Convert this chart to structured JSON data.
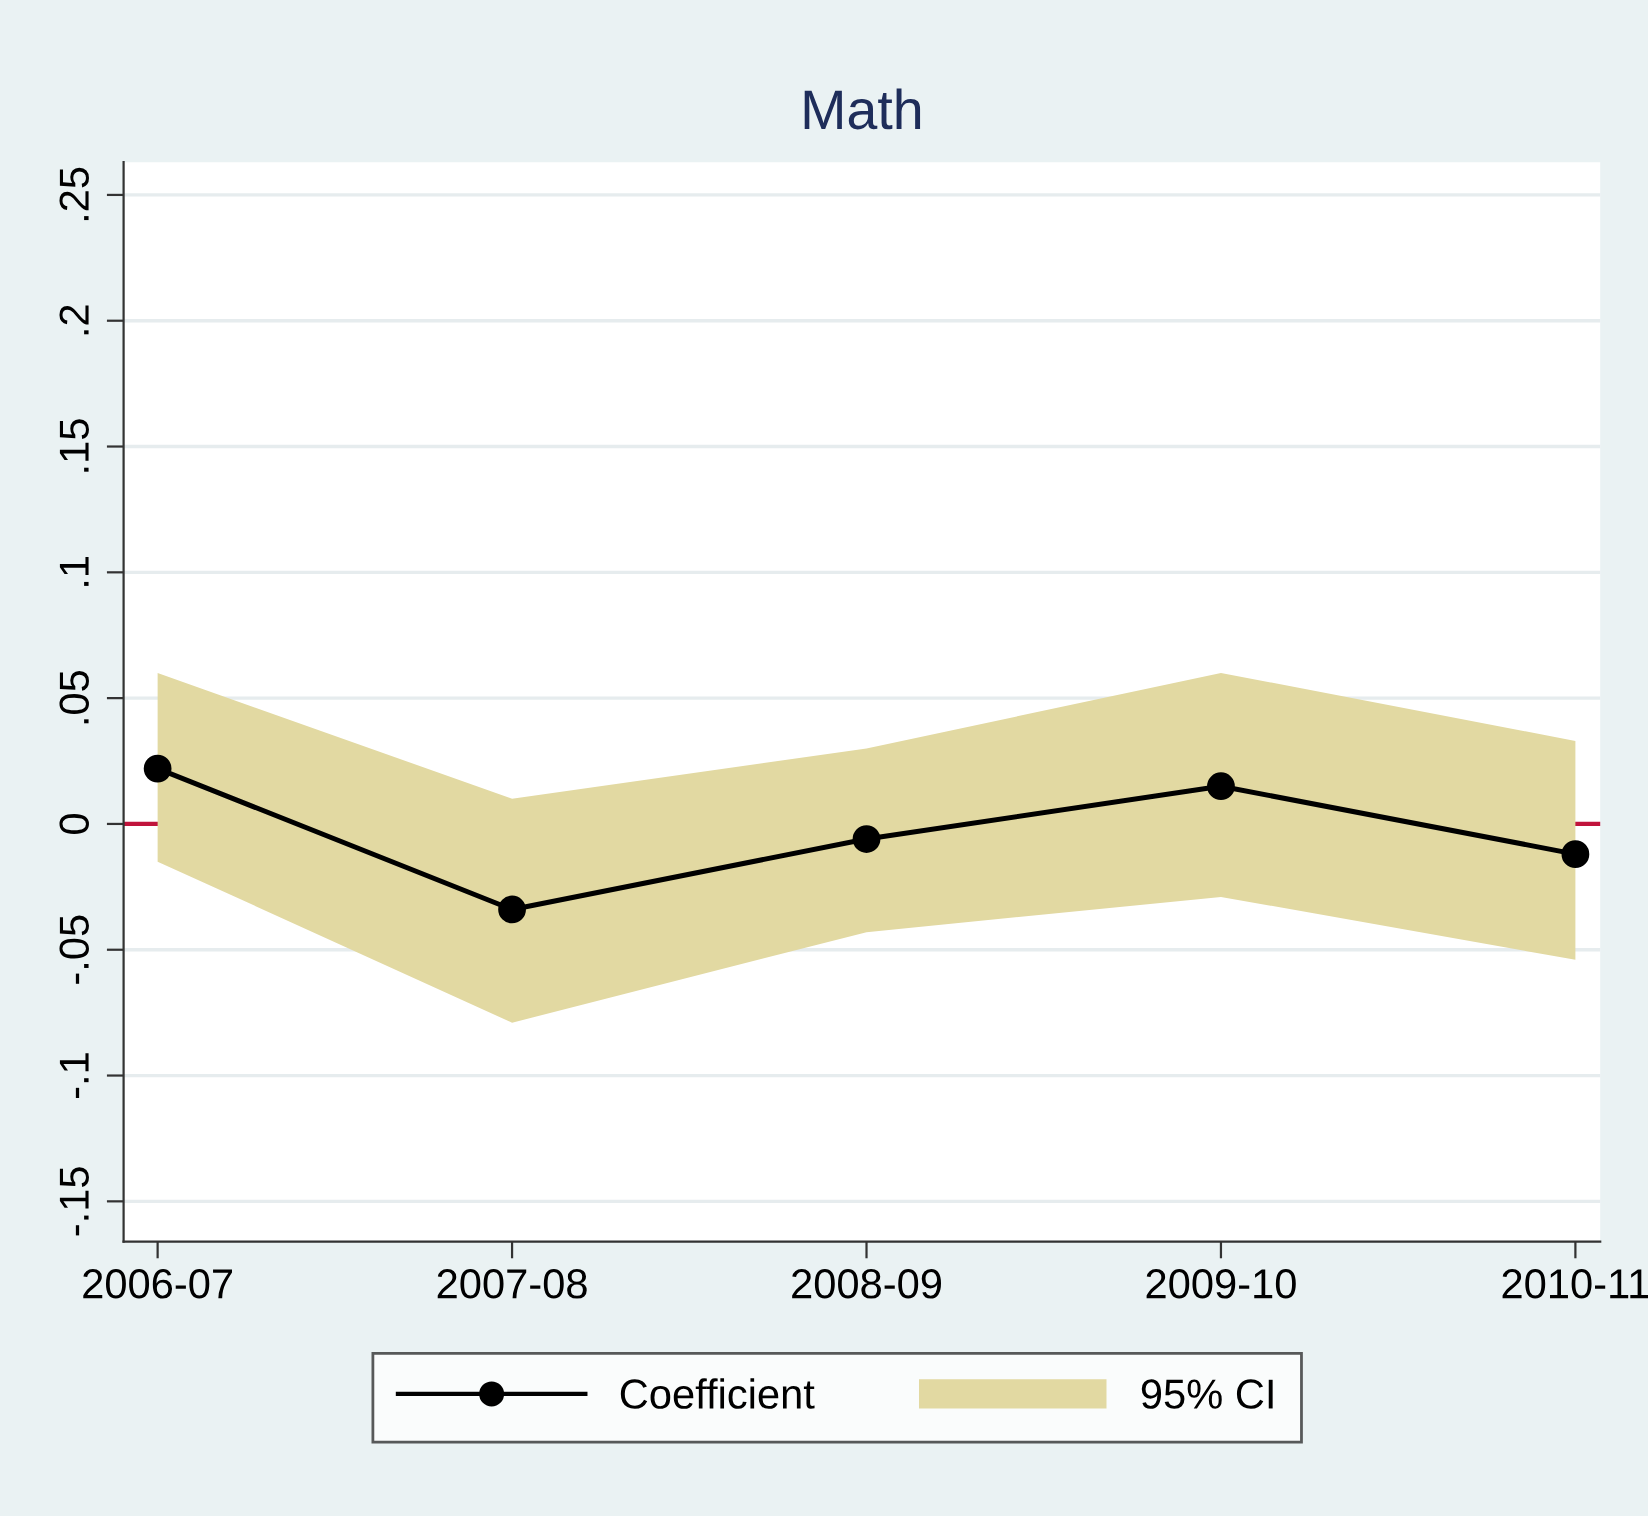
{
  "chart_data": {
    "type": "line",
    "title": "Math",
    "categories": [
      "2006-07",
      "2007-08",
      "2008-09",
      "2009-10",
      "2010-11"
    ],
    "series": [
      {
        "name": "Coefficient",
        "color": "#000000",
        "values": [
          0.022,
          -0.034,
          -0.006,
          0.015,
          -0.012
        ],
        "lower": [
          -0.015,
          -0.079,
          -0.043,
          -0.029,
          -0.054
        ],
        "upper": [
          0.06,
          0.01,
          0.03,
          0.06,
          0.033
        ],
        "marker": "circle",
        "line_style": "solid"
      }
    ],
    "annotations": [
      "95% CI"
    ],
    "ylim": [
      -0.166,
      0.263
    ],
    "yticks": [
      {
        "value": -0.15,
        "label": "-.15"
      },
      {
        "value": -0.1,
        "label": "-.1"
      },
      {
        "value": -0.05,
        "label": "-.05"
      },
      0,
      {
        "value": 0.05,
        "label": ".05"
      },
      {
        "value": 0.1,
        "label": ".1"
      },
      {
        "value": 0.15,
        "label": ".15"
      },
      {
        "value": 0.2,
        "label": ".2"
      },
      {
        "value": 0.25,
        "label": ".25"
      }
    ],
    "ref_lines": [
      {
        "axis": "y",
        "value": 0,
        "color": "#c0143c"
      }
    ],
    "grid": "y",
    "legend": "bottom"
  }
}
